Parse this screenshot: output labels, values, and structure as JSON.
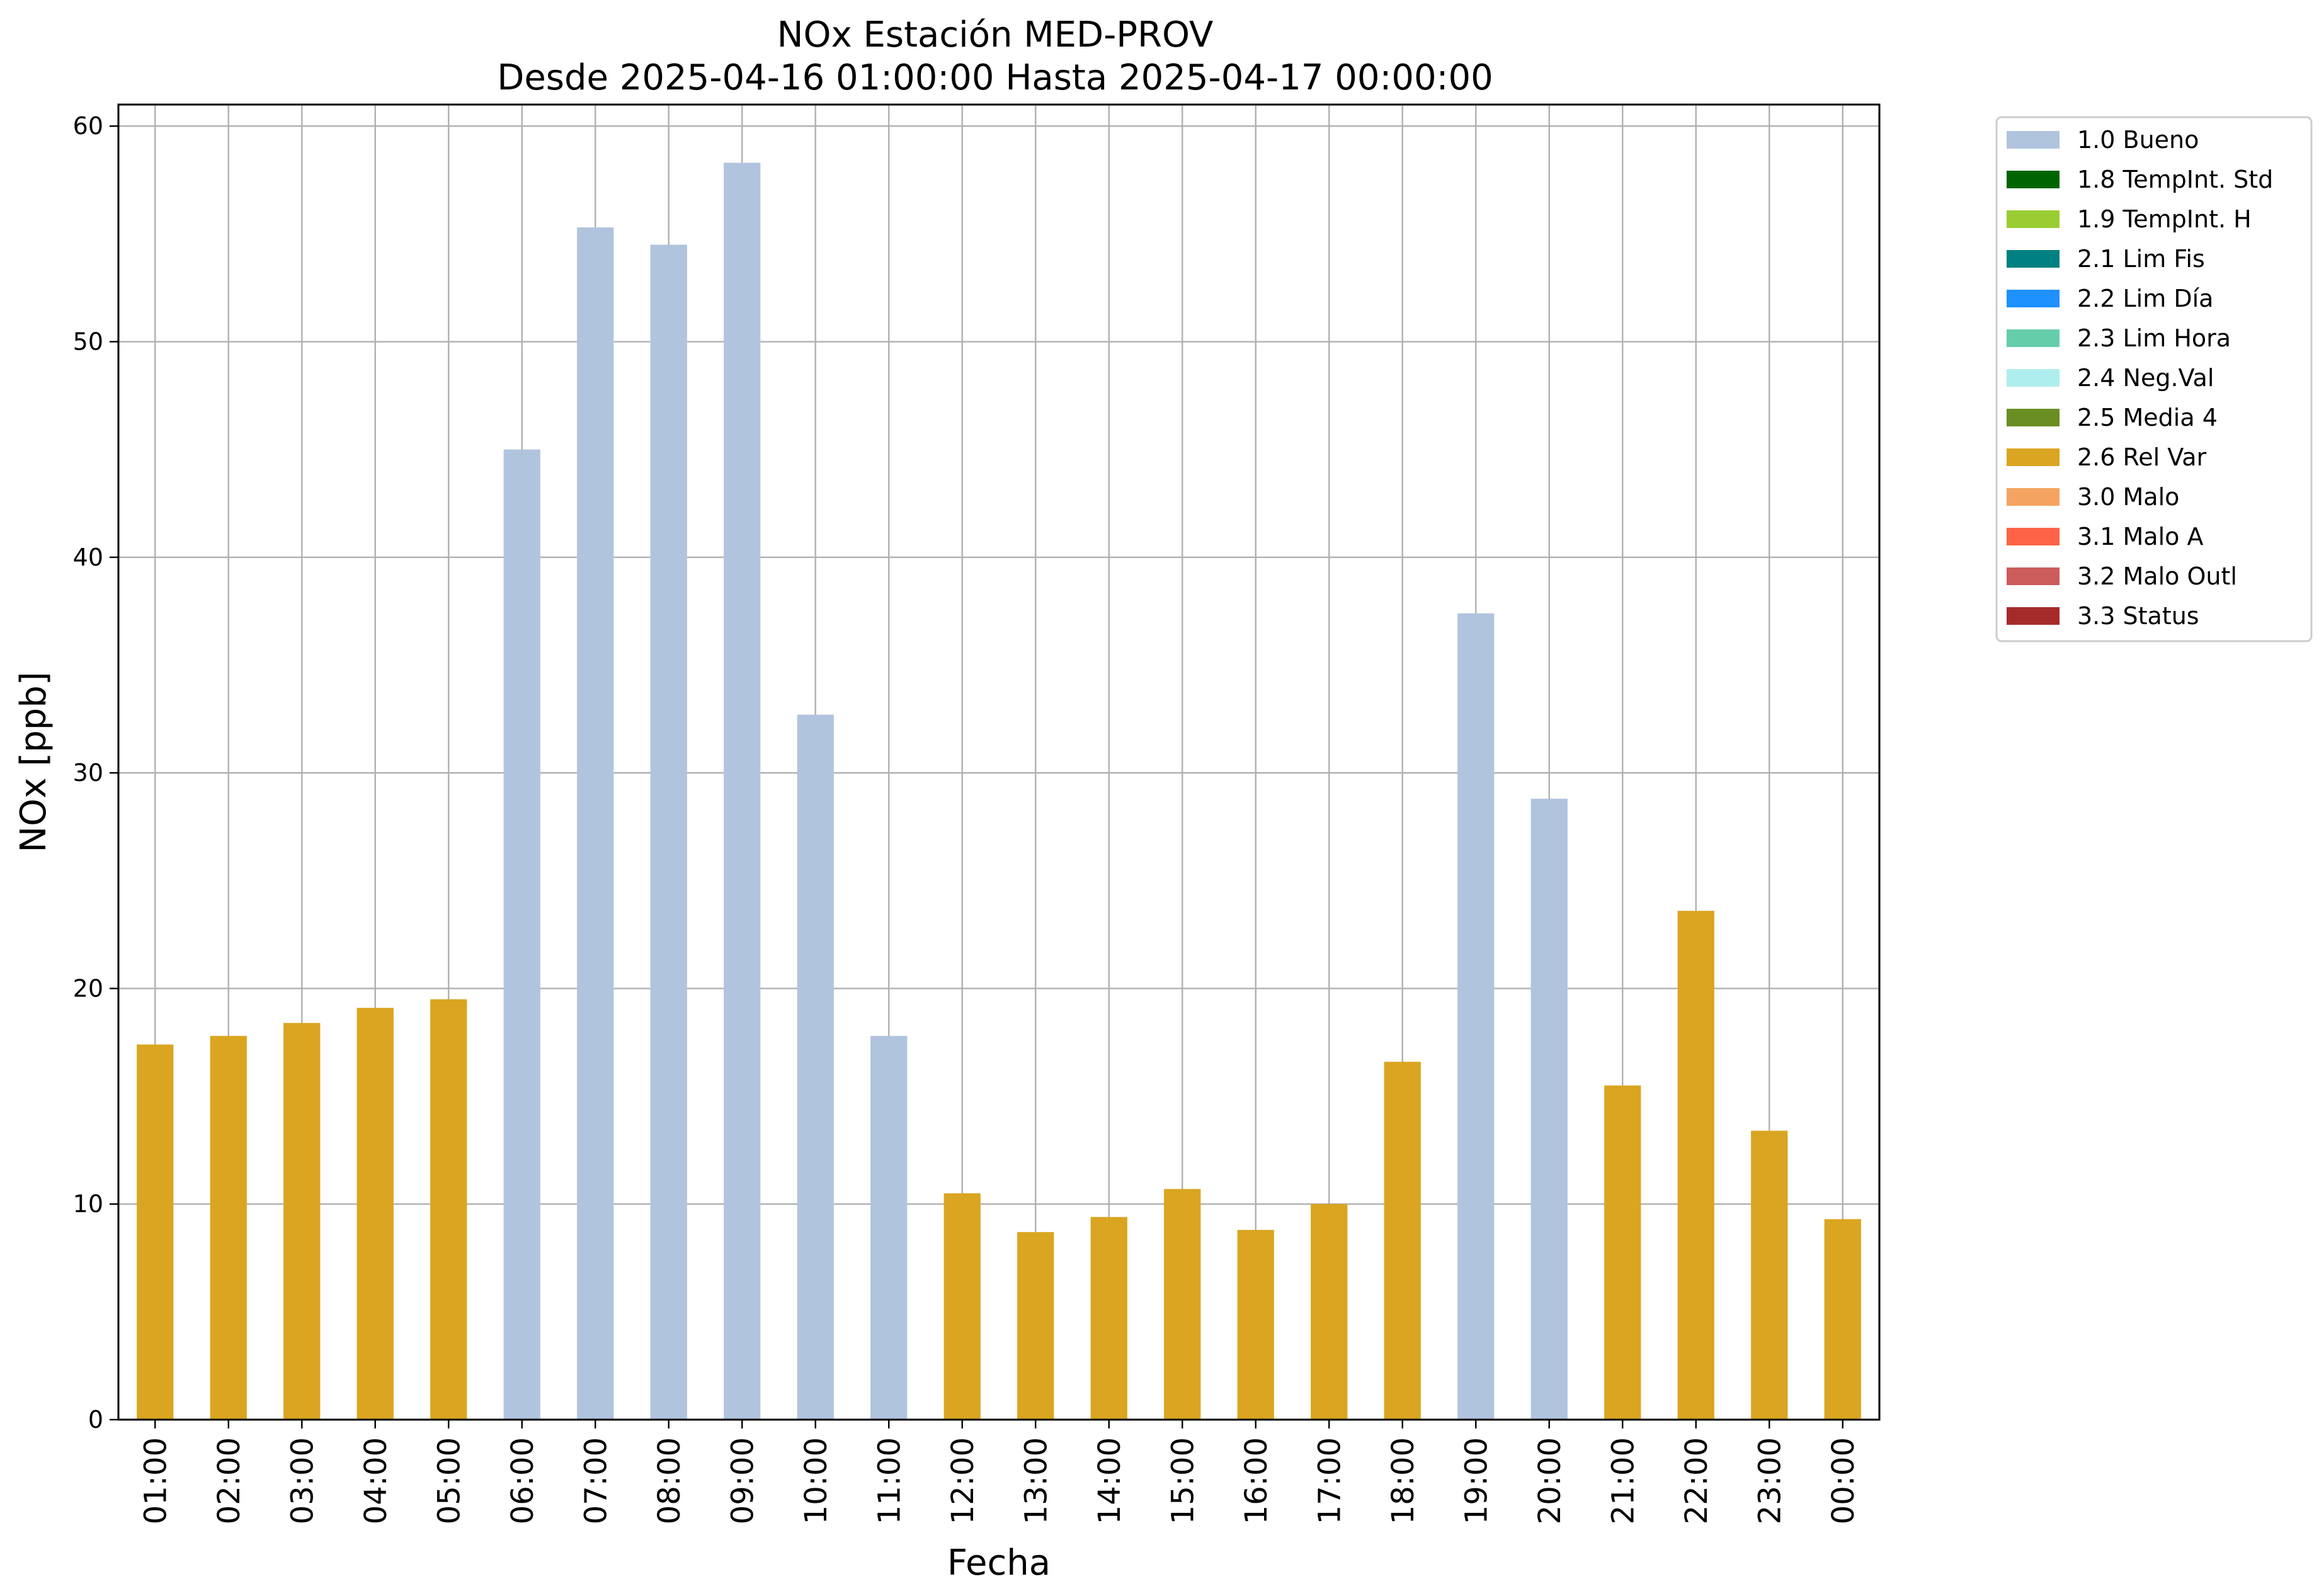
{
  "chart_data": {
    "type": "bar",
    "title": "NOx Estación MED-PROV",
    "subtitle": "Desde 2025-04-16 01:00:00 Hasta 2025-04-17 00:00:00",
    "xlabel": "Fecha",
    "ylabel": "NOx [ppb]",
    "ylim": [
      0,
      61
    ],
    "yticks": [
      0,
      10,
      20,
      30,
      40,
      50,
      60
    ],
    "grid": true,
    "legend_position": "outside-top-right",
    "categories": [
      "01:00",
      "02:00",
      "03:00",
      "04:00",
      "05:00",
      "06:00",
      "07:00",
      "08:00",
      "09:00",
      "10:00",
      "11:00",
      "12:00",
      "13:00",
      "14:00",
      "15:00",
      "16:00",
      "17:00",
      "18:00",
      "19:00",
      "20:00",
      "21:00",
      "22:00",
      "23:00",
      "00:00"
    ],
    "values": [
      17.4,
      17.8,
      18.4,
      19.1,
      19.5,
      45.0,
      55.3,
      54.5,
      58.3,
      32.7,
      17.8,
      10.5,
      8.7,
      9.4,
      10.7,
      8.8,
      10.0,
      16.6,
      37.4,
      28.8,
      15.5,
      23.6,
      13.4,
      9.3
    ],
    "flags": [
      "2.6 Rel Var",
      "2.6 Rel Var",
      "2.6 Rel Var",
      "2.6 Rel Var",
      "2.6 Rel Var",
      "1.0 Bueno",
      "1.0 Bueno",
      "1.0 Bueno",
      "1.0 Bueno",
      "1.0 Bueno",
      "1.0 Bueno",
      "2.6 Rel Var",
      "2.6 Rel Var",
      "2.6 Rel Var",
      "2.6 Rel Var",
      "2.6 Rel Var",
      "2.6 Rel Var",
      "2.6 Rel Var",
      "1.0 Bueno",
      "1.0 Bueno",
      "2.6 Rel Var",
      "2.6 Rel Var",
      "2.6 Rel Var",
      "2.6 Rel Var"
    ],
    "legend": [
      {
        "label": "1.0 Bueno",
        "color": "#b0c4de"
      },
      {
        "label": "1.8 TempInt. Std",
        "color": "#006400"
      },
      {
        "label": "1.9 TempInt. H",
        "color": "#9acd32"
      },
      {
        "label": "2.1 Lim Fis",
        "color": "#008080"
      },
      {
        "label": "2.2 Lim Día",
        "color": "#1e90ff"
      },
      {
        "label": "2.3 Lim Hora",
        "color": "#66cdaa"
      },
      {
        "label": "2.4 Neg.Val",
        "color": "#afeeee"
      },
      {
        "label": "2.5 Media 4",
        "color": "#6b8e23"
      },
      {
        "label": "2.6 Rel Var",
        "color": "#daa520"
      },
      {
        "label": "3.0 Malo",
        "color": "#f4a460"
      },
      {
        "label": "3.1 Malo A",
        "color": "#ff6347"
      },
      {
        "label": "3.2 Malo Outl",
        "color": "#cd5c5c"
      },
      {
        "label": "3.3 Status",
        "color": "#a52a2a"
      }
    ]
  }
}
